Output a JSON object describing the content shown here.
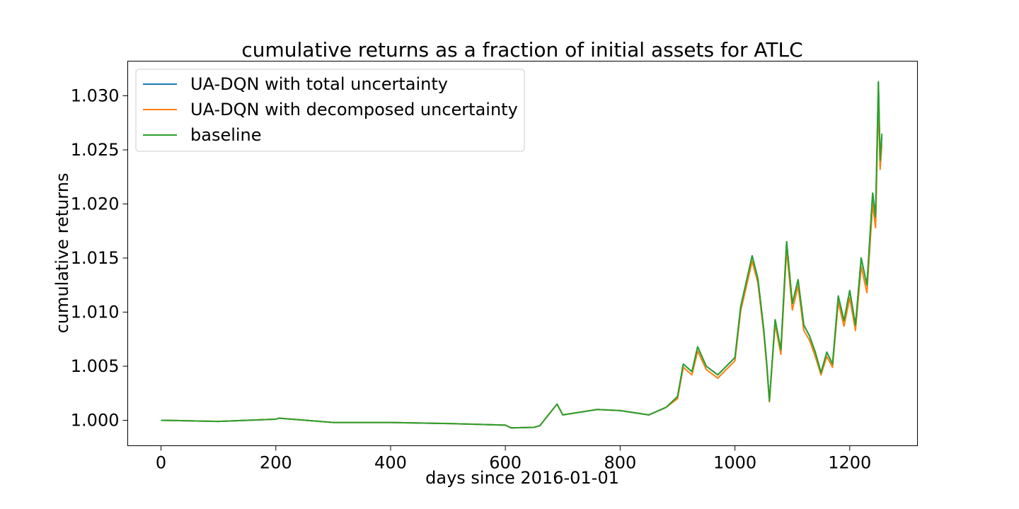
{
  "chart_data": {
    "type": "line",
    "title": "cumulative returns as a fraction of initial assets for ATLC",
    "xlabel": "days since 2016-01-01",
    "ylabel": "cumulative returns",
    "xlim": [
      -58,
      1318
    ],
    "ylim": [
      0.99765,
      1.0332
    ],
    "xticks": [
      0,
      200,
      400,
      600,
      800,
      1000,
      1200
    ],
    "xtick_labels": [
      "0",
      "200",
      "400",
      "600",
      "800",
      "1000",
      "1200"
    ],
    "yticks": [
      1.0,
      1.005,
      1.01,
      1.015,
      1.02,
      1.025,
      1.03
    ],
    "ytick_labels": [
      "1.000",
      "1.005",
      "1.010",
      "1.015",
      "1.020",
      "1.025",
      "1.030"
    ],
    "grid": false,
    "legend_position": "upper-left",
    "series": [
      {
        "name": "UA-DQN with total uncertainty",
        "color": "#1f77b4",
        "x": [
          0,
          100,
          200,
          205,
          300,
          400,
          500,
          600,
          610,
          650,
          660,
          690,
          700,
          760,
          800,
          850,
          880,
          900,
          910,
          925,
          935,
          950,
          970,
          1000,
          1010,
          1030,
          1040,
          1050,
          1055,
          1060,
          1070,
          1080,
          1090,
          1100,
          1110,
          1120,
          1130,
          1140,
          1150,
          1160,
          1170,
          1180,
          1190,
          1200,
          1210,
          1220,
          1230,
          1240,
          1245,
          1250,
          1253,
          1256
        ],
        "y": [
          1.0,
          0.9999,
          1.0001,
          1.0002,
          0.9998,
          0.9998,
          0.9997,
          0.99955,
          0.9993,
          0.99935,
          0.9995,
          1.0015,
          1.0005,
          1.001,
          1.0009,
          1.0005,
          1.0012,
          1.0022,
          1.0052,
          1.0045,
          1.0068,
          1.005,
          1.0042,
          1.0058,
          1.0105,
          1.0152,
          1.0131,
          1.0085,
          1.0055,
          1.0018,
          1.0093,
          1.0065,
          1.0165,
          1.0108,
          1.013,
          1.0088,
          1.0078,
          1.0063,
          1.0044,
          1.0063,
          1.0052,
          1.0115,
          1.0092,
          1.012,
          1.0088,
          1.015,
          1.0125,
          1.021,
          1.0188,
          1.0312,
          1.0235,
          1.0262
        ]
      },
      {
        "name": "UA-DQN with decomposed uncertainty",
        "color": "#ff7f0e",
        "x": [
          0,
          100,
          200,
          205,
          300,
          400,
          500,
          600,
          610,
          650,
          660,
          690,
          700,
          760,
          800,
          850,
          880,
          900,
          910,
          925,
          935,
          950,
          970,
          1000,
          1010,
          1030,
          1040,
          1050,
          1055,
          1060,
          1070,
          1080,
          1090,
          1100,
          1110,
          1120,
          1130,
          1140,
          1150,
          1160,
          1170,
          1180,
          1190,
          1200,
          1210,
          1220,
          1230,
          1240,
          1245,
          1250,
          1253,
          1256
        ],
        "y": [
          1.0,
          0.9999,
          1.0001,
          1.0002,
          0.9998,
          0.9998,
          0.9997,
          0.99955,
          0.9993,
          0.99935,
          0.9995,
          1.0015,
          1.0005,
          1.001,
          1.0009,
          1.0005,
          1.0012,
          1.002,
          1.0049,
          1.0042,
          1.0064,
          1.0047,
          1.0039,
          1.0055,
          1.0101,
          1.0147,
          1.0127,
          1.0082,
          1.0052,
          1.0017,
          1.0089,
          1.0061,
          1.0158,
          1.0102,
          1.0124,
          1.0083,
          1.0074,
          1.0059,
          1.0042,
          1.0059,
          1.0049,
          1.0109,
          1.0087,
          1.0113,
          1.0083,
          1.0142,
          1.0118,
          1.02,
          1.0178,
          1.0295,
          1.0232,
          1.0255
        ]
      },
      {
        "name": "baseline",
        "color": "#2ca02c",
        "x": [
          0,
          100,
          200,
          205,
          300,
          400,
          500,
          600,
          610,
          650,
          660,
          690,
          700,
          760,
          800,
          850,
          880,
          900,
          910,
          925,
          935,
          950,
          970,
          1000,
          1010,
          1030,
          1040,
          1050,
          1055,
          1060,
          1070,
          1080,
          1090,
          1100,
          1110,
          1120,
          1130,
          1140,
          1150,
          1160,
          1170,
          1180,
          1190,
          1200,
          1210,
          1220,
          1230,
          1240,
          1245,
          1250,
          1253,
          1256
        ],
        "y": [
          1.0,
          0.9999,
          1.0001,
          1.0002,
          0.9998,
          0.9998,
          0.9997,
          0.99955,
          0.9993,
          0.99935,
          0.9995,
          1.0015,
          1.0005,
          1.001,
          1.0009,
          1.0005,
          1.0012,
          1.0022,
          1.0052,
          1.0045,
          1.0068,
          1.005,
          1.0042,
          1.0058,
          1.0105,
          1.0152,
          1.0131,
          1.0085,
          1.0055,
          1.0018,
          1.0093,
          1.0065,
          1.0165,
          1.0108,
          1.013,
          1.0088,
          1.0078,
          1.0063,
          1.0044,
          1.0063,
          1.0052,
          1.0115,
          1.0092,
          1.012,
          1.0088,
          1.015,
          1.0125,
          1.021,
          1.0188,
          1.0313,
          1.024,
          1.0265
        ]
      }
    ]
  }
}
